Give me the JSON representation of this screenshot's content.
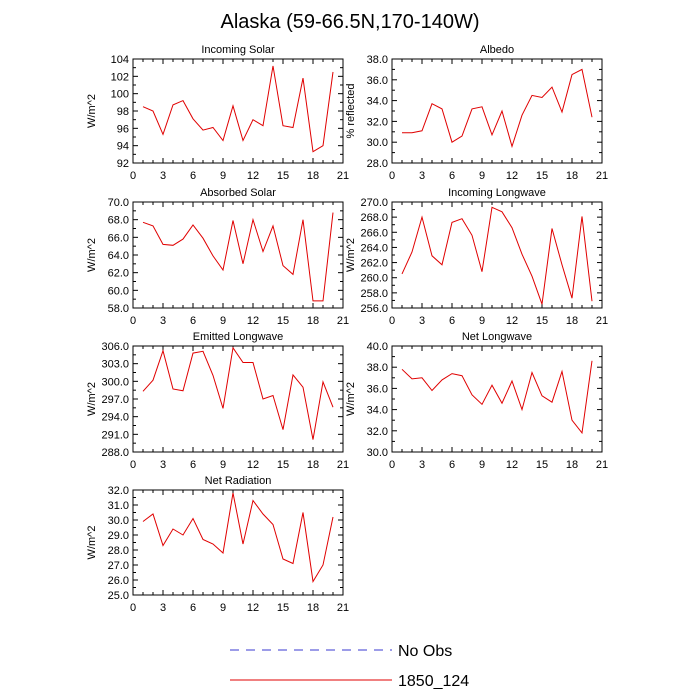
{
  "figure_title": "Alaska (59-66.5N,170-140W)",
  "legend": [
    {
      "label": "No Obs",
      "color": "#3a3ad0",
      "dash": "dashed"
    },
    {
      "label": "1850_124",
      "color": "#e00000",
      "dash": "solid"
    }
  ],
  "chart_data": [
    {
      "type": "line",
      "title": "Incoming Solar",
      "ylabel": "W/m^2",
      "xlim": [
        0,
        21
      ],
      "ylim": [
        92,
        104
      ],
      "xticks": [
        0,
        3,
        6,
        9,
        12,
        15,
        18,
        21
      ],
      "yticks": [
        "92",
        "94",
        "96",
        "98",
        "100",
        "102",
        "104"
      ],
      "x": [
        1,
        2,
        3,
        4,
        5,
        6,
        7,
        8,
        9,
        10,
        11,
        12,
        13,
        14,
        15,
        16,
        17,
        18,
        19,
        20
      ],
      "series": [
        {
          "name": "1850_124",
          "values": [
            98.5,
            98.0,
            95.3,
            98.7,
            99.2,
            97.1,
            95.8,
            96.1,
            94.6,
            98.6,
            94.6,
            97.0,
            96.3,
            103.2,
            96.3,
            96.1,
            101.8,
            93.3,
            94.0,
            102.5
          ]
        }
      ]
    },
    {
      "type": "line",
      "title": "Albedo",
      "ylabel": "% reflected",
      "xlim": [
        0,
        21
      ],
      "ylim": [
        28,
        38
      ],
      "xticks": [
        0,
        3,
        6,
        9,
        12,
        15,
        18,
        21
      ],
      "yticks": [
        "28.0",
        "30.0",
        "32.0",
        "34.0",
        "36.0",
        "38.0"
      ],
      "x": [
        1,
        2,
        3,
        4,
        5,
        6,
        7,
        8,
        9,
        10,
        11,
        12,
        13,
        14,
        15,
        16,
        17,
        18,
        19,
        20
      ],
      "series": [
        {
          "name": "1850_124",
          "values": [
            30.9,
            30.9,
            31.1,
            33.7,
            33.2,
            30.0,
            30.6,
            33.2,
            33.4,
            30.7,
            33.0,
            29.6,
            32.6,
            34.5,
            34.3,
            35.3,
            32.9,
            36.5,
            37.0,
            32.4
          ]
        }
      ]
    },
    {
      "type": "line",
      "title": "Absorbed Solar",
      "ylabel": "W/m^2",
      "xlim": [
        0,
        21
      ],
      "ylim": [
        58,
        70
      ],
      "xticks": [
        0,
        3,
        6,
        9,
        12,
        15,
        18,
        21
      ],
      "yticks": [
        "58.0",
        "60.0",
        "62.0",
        "64.0",
        "66.0",
        "68.0",
        "70.0"
      ],
      "x": [
        1,
        2,
        3,
        4,
        5,
        6,
        7,
        8,
        9,
        10,
        11,
        12,
        13,
        14,
        15,
        16,
        17,
        18,
        19,
        20
      ],
      "series": [
        {
          "name": "1850_124",
          "values": [
            67.7,
            67.3,
            65.2,
            65.1,
            65.8,
            67.4,
            65.9,
            63.9,
            62.3,
            67.9,
            63.0,
            68.0,
            64.4,
            67.3,
            62.8,
            61.8,
            68.0,
            58.8,
            58.8,
            68.8
          ]
        }
      ]
    },
    {
      "type": "line",
      "title": "Incoming Longwave",
      "ylabel": "W/m^2",
      "xlim": [
        0,
        21
      ],
      "ylim": [
        256,
        270
      ],
      "xticks": [
        0,
        3,
        6,
        9,
        12,
        15,
        18,
        21
      ],
      "yticks": [
        "256.0",
        "258.0",
        "260.0",
        "262.0",
        "264.0",
        "266.0",
        "268.0",
        "270.0"
      ],
      "x": [
        1,
        2,
        3,
        4,
        5,
        6,
        7,
        8,
        9,
        10,
        11,
        12,
        13,
        14,
        15,
        16,
        17,
        18,
        19,
        20
      ],
      "series": [
        {
          "name": "1850_124",
          "values": [
            260.5,
            263.4,
            268.0,
            262.9,
            261.7,
            267.3,
            267.8,
            265.6,
            260.8,
            269.3,
            268.7,
            266.6,
            263.1,
            260.2,
            256.5,
            266.5,
            261.7,
            257.3,
            268.1,
            256.9
          ]
        }
      ]
    },
    {
      "type": "line",
      "title": "Emitted Longwave",
      "ylabel": "W/m^2",
      "xlim": [
        0,
        21
      ],
      "ylim": [
        288,
        306
      ],
      "xticks": [
        0,
        3,
        6,
        9,
        12,
        15,
        18,
        21
      ],
      "yticks": [
        "288.0",
        "291.0",
        "294.0",
        "297.0",
        "300.0",
        "303.0",
        "306.0"
      ],
      "x": [
        1,
        2,
        3,
        4,
        5,
        6,
        7,
        8,
        9,
        10,
        11,
        12,
        13,
        14,
        15,
        16,
        17,
        18,
        19,
        20
      ],
      "series": [
        {
          "name": "1850_124",
          "values": [
            298.3,
            300.2,
            305.2,
            298.7,
            298.4,
            304.8,
            305.1,
            301.0,
            295.4,
            305.7,
            303.2,
            303.2,
            297.0,
            297.6,
            291.8,
            301.1,
            299.0,
            290.1,
            299.9,
            295.6
          ]
        }
      ]
    },
    {
      "type": "line",
      "title": "Net Longwave",
      "ylabel": "W/m^2",
      "xlim": [
        0,
        21
      ],
      "ylim": [
        30,
        40
      ],
      "xticks": [
        0,
        3,
        6,
        9,
        12,
        15,
        18,
        21
      ],
      "yticks": [
        "30.0",
        "32.0",
        "34.0",
        "36.0",
        "38.0",
        "40.0"
      ],
      "x": [
        1,
        2,
        3,
        4,
        5,
        6,
        7,
        8,
        9,
        10,
        11,
        12,
        13,
        14,
        15,
        16,
        17,
        18,
        19,
        20
      ],
      "series": [
        {
          "name": "1850_124",
          "values": [
            37.8,
            36.9,
            37.0,
            35.8,
            36.8,
            37.4,
            37.2,
            35.4,
            34.5,
            36.3,
            34.6,
            36.7,
            34.0,
            37.5,
            35.3,
            34.7,
            37.6,
            33.0,
            31.8,
            38.6
          ]
        }
      ]
    },
    {
      "type": "line",
      "title": "Net Radiation",
      "ylabel": "W/m^2",
      "xlim": [
        0,
        21
      ],
      "ylim": [
        25,
        32
      ],
      "xticks": [
        0,
        3,
        6,
        9,
        12,
        15,
        18,
        21
      ],
      "yticks": [
        "25.0",
        "26.0",
        "27.0",
        "28.0",
        "29.0",
        "30.0",
        "31.0",
        "32.0"
      ],
      "x": [
        1,
        2,
        3,
        4,
        5,
        6,
        7,
        8,
        9,
        10,
        11,
        12,
        13,
        14,
        15,
        16,
        17,
        18,
        19,
        20
      ],
      "series": [
        {
          "name": "1850_124",
          "values": [
            29.9,
            30.4,
            28.3,
            29.4,
            29.0,
            30.1,
            28.7,
            28.4,
            27.8,
            31.8,
            28.4,
            31.3,
            30.4,
            29.7,
            27.4,
            27.1,
            30.5,
            25.9,
            27.0,
            30.2
          ]
        }
      ]
    }
  ]
}
